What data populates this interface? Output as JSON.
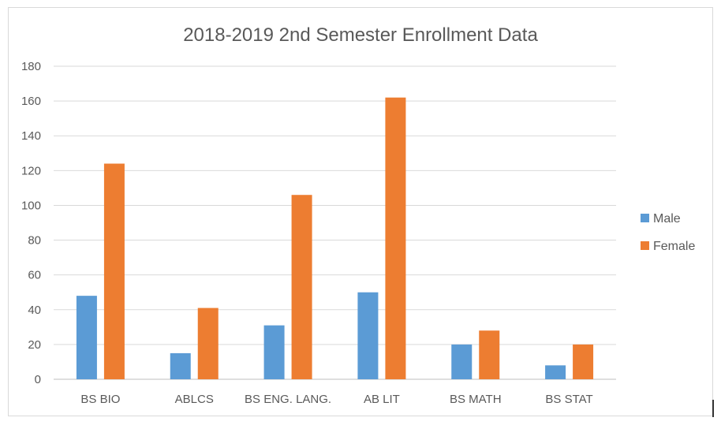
{
  "chart_data": {
    "type": "bar",
    "title": "2018-2019 2nd Semester Enrollment Data",
    "categories": [
      "BS BIO",
      "ABLCS",
      "BS ENG. LANG.",
      "AB LIT",
      "BS MATH",
      "BS STAT"
    ],
    "series": [
      {
        "name": "Male",
        "color": "#5b9bd5",
        "values": [
          48,
          15,
          31,
          50,
          20,
          8
        ]
      },
      {
        "name": "Female",
        "color": "#ed7d31",
        "values": [
          124,
          41,
          106,
          162,
          28,
          20
        ]
      }
    ],
    "xlabel": "",
    "ylabel": "",
    "ylim": [
      0,
      180
    ],
    "yticks": [
      0,
      20,
      40,
      60,
      80,
      100,
      120,
      140,
      160,
      180
    ],
    "grid": true,
    "legend_position": "right"
  }
}
